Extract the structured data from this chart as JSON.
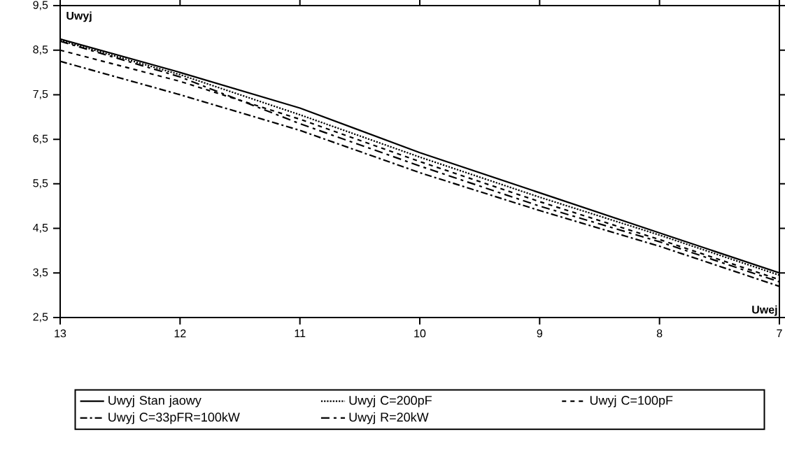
{
  "chart_data": {
    "type": "line",
    "xlabel": "Uwej",
    "ylabel": "Uwyj",
    "x": [
      13,
      12,
      11,
      10,
      9,
      8,
      7
    ],
    "xlim": [
      13,
      7
    ],
    "xticks": [
      13,
      12,
      11,
      10,
      9,
      8,
      7
    ],
    "ylim": [
      2.5,
      9.5
    ],
    "yticks": [
      {
        "value": 2.5,
        "label": "2,5"
      },
      {
        "value": 3.5,
        "label": "3,5"
      },
      {
        "value": 4.5,
        "label": "4,5"
      },
      {
        "value": 5.5,
        "label": "5,5"
      },
      {
        "value": 6.5,
        "label": "6,5"
      },
      {
        "value": 7.5,
        "label": "7,5"
      },
      {
        "value": 8.5,
        "label": "8,5"
      },
      {
        "value": 9.5,
        "label": "9,5"
      }
    ],
    "grid": false,
    "legend": "bottom",
    "marker": "none",
    "series": [
      {
        "name": "Uwyj Stan jaowy",
        "color": "#000000",
        "line_style": "solid",
        "values": [
          8.75,
          8.0,
          7.2,
          6.2,
          5.3,
          4.4,
          3.5
        ]
      },
      {
        "name": "Uwyj  C=200pF",
        "color": "#000000",
        "line_style": "dotted",
        "values": [
          8.72,
          7.95,
          7.05,
          6.1,
          5.2,
          4.35,
          3.45
        ]
      },
      {
        "name": "Uwyj  C=100pF",
        "color": "#000000",
        "line_style": "dashed",
        "values": [
          8.5,
          7.8,
          6.95,
          6.0,
          5.1,
          4.25,
          3.35
        ]
      },
      {
        "name": "Uwyj  C=33pFR=100kW",
        "color": "#000000",
        "line_style": "dashdot",
        "values": [
          8.25,
          7.5,
          6.7,
          5.75,
          4.9,
          4.1,
          3.2
        ]
      },
      {
        "name": "Uwyj  R=20kW",
        "color": "#000000",
        "line_style": "dashdotdot",
        "values": [
          8.7,
          7.9,
          6.85,
          5.9,
          5.0,
          4.2,
          3.3
        ]
      }
    ]
  }
}
